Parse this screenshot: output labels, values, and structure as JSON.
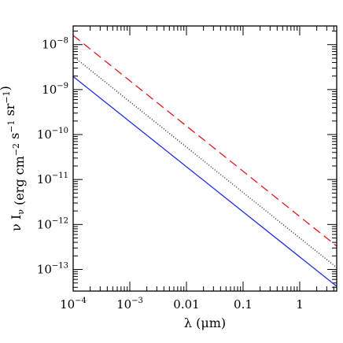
{
  "chart_data": {
    "type": "line",
    "xlabel": "λ (μm)",
    "ylabel": "ν I_ν (erg cm^-2 s^-1 sr^-1)",
    "x_scale": "log",
    "y_scale": "log",
    "xlim": [
      0.0001,
      4.5
    ],
    "ylim": [
      3.3e-14,
      2.6e-08
    ],
    "x_ticks": [
      {
        "value": 0.0001,
        "label": "10",
        "exp": "-4"
      },
      {
        "value": 0.001,
        "label": "10",
        "exp": "-3"
      },
      {
        "value": 0.01,
        "label": "0.01",
        "exp": ""
      },
      {
        "value": 0.1,
        "label": "0.1",
        "exp": ""
      },
      {
        "value": 1,
        "label": "1",
        "exp": ""
      }
    ],
    "y_ticks": [
      {
        "value": 1e-13,
        "label": "10",
        "exp": "-13"
      },
      {
        "value": 1e-12,
        "label": "10",
        "exp": "-12"
      },
      {
        "value": 1e-11,
        "label": "10",
        "exp": "-11"
      },
      {
        "value": 1e-10,
        "label": "10",
        "exp": "-10"
      },
      {
        "value": 1e-09,
        "label": "10",
        "exp": "-9"
      },
      {
        "value": 1e-08,
        "label": "10",
        "exp": "-8"
      }
    ],
    "series": [
      {
        "style": "dashed",
        "color": "#e8161b",
        "x": [
          0.0001,
          4.5
        ],
        "y": [
          1.6e-08,
          3.3e-13
        ]
      },
      {
        "style": "dotted",
        "color": "#000000",
        "x": [
          0.0001,
          4.5
        ],
        "y": [
          5.5e-09,
          1.1e-13
        ]
      },
      {
        "style": "solid",
        "color": "#1f2de0",
        "x": [
          0.0001,
          4.5
        ],
        "y": [
          1.95e-09,
          4.2e-14
        ]
      }
    ]
  }
}
